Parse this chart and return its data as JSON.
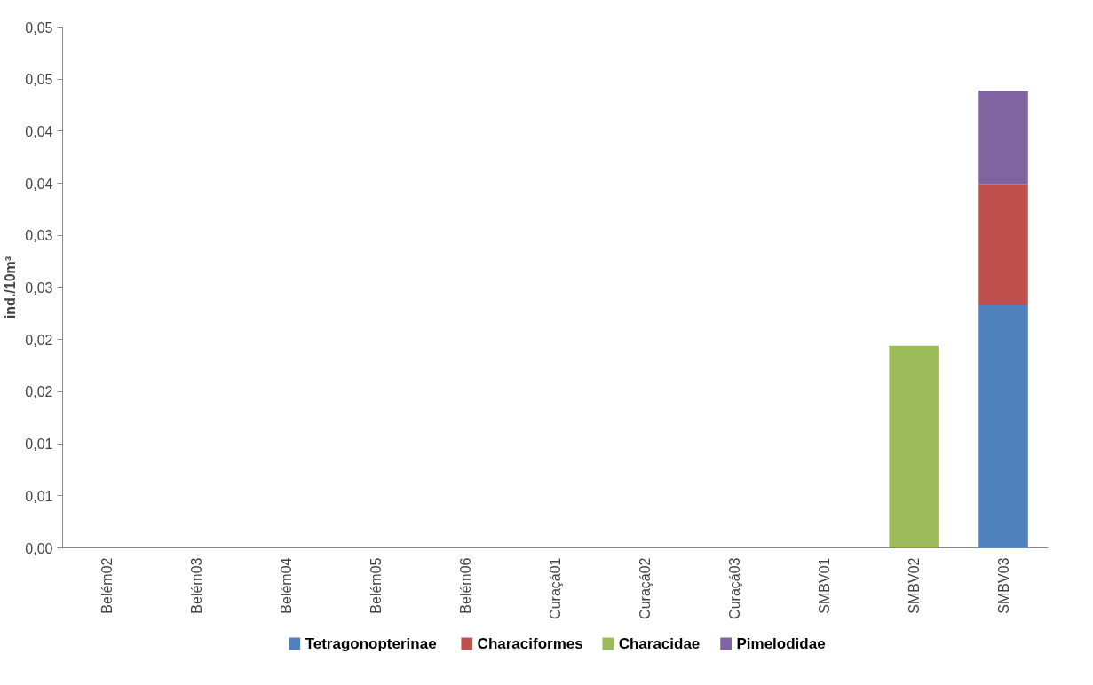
{
  "chart_data": {
    "type": "bar",
    "stacked": true,
    "ylabel": "ind./10m³",
    "categories": [
      "Belém02",
      "Belém03",
      "Belém04",
      "Belém05",
      "Belém06",
      "Curaçá01",
      "Curaçá02",
      "Curaçá03",
      "SMBV01",
      "SMBV02",
      "SMBV03"
    ],
    "series": [
      {
        "name": "Tetragonopterinae",
        "color": "#4f81bd",
        "values": [
          0,
          0,
          0,
          0,
          0,
          0,
          0,
          0,
          0,
          0,
          0.0233
        ]
      },
      {
        "name": "Characiformes",
        "color": "#c0504d",
        "values": [
          0,
          0,
          0,
          0,
          0,
          0,
          0,
          0,
          0,
          0,
          0.0116
        ]
      },
      {
        "name": "Characidae",
        "color": "#9bbb59",
        "values": [
          0,
          0,
          0,
          0,
          0,
          0,
          0,
          0,
          0,
          0.0194,
          0
        ]
      },
      {
        "name": "Pimelodidae",
        "color": "#8064a2",
        "values": [
          0,
          0,
          0,
          0,
          0,
          0,
          0,
          0,
          0,
          0,
          0.009
        ]
      }
    ],
    "ylim": [
      0,
      0.05
    ],
    "yticks": [
      {
        "value": 0,
        "label": "0,00"
      },
      {
        "value": 0.005,
        "label": "0,01"
      },
      {
        "value": 0.01,
        "label": "0,01"
      },
      {
        "value": 0.015,
        "label": "0,02"
      },
      {
        "value": 0.02,
        "label": "0,02"
      },
      {
        "value": 0.025,
        "label": "0,03"
      },
      {
        "value": 0.03,
        "label": "0,03"
      },
      {
        "value": 0.035,
        "label": "0,04"
      },
      {
        "value": 0.04,
        "label": "0,04"
      },
      {
        "value": 0.045,
        "label": "0,05"
      },
      {
        "value": 0.05,
        "label": "0,05"
      }
    ],
    "grid": false,
    "legend": "bottom"
  }
}
